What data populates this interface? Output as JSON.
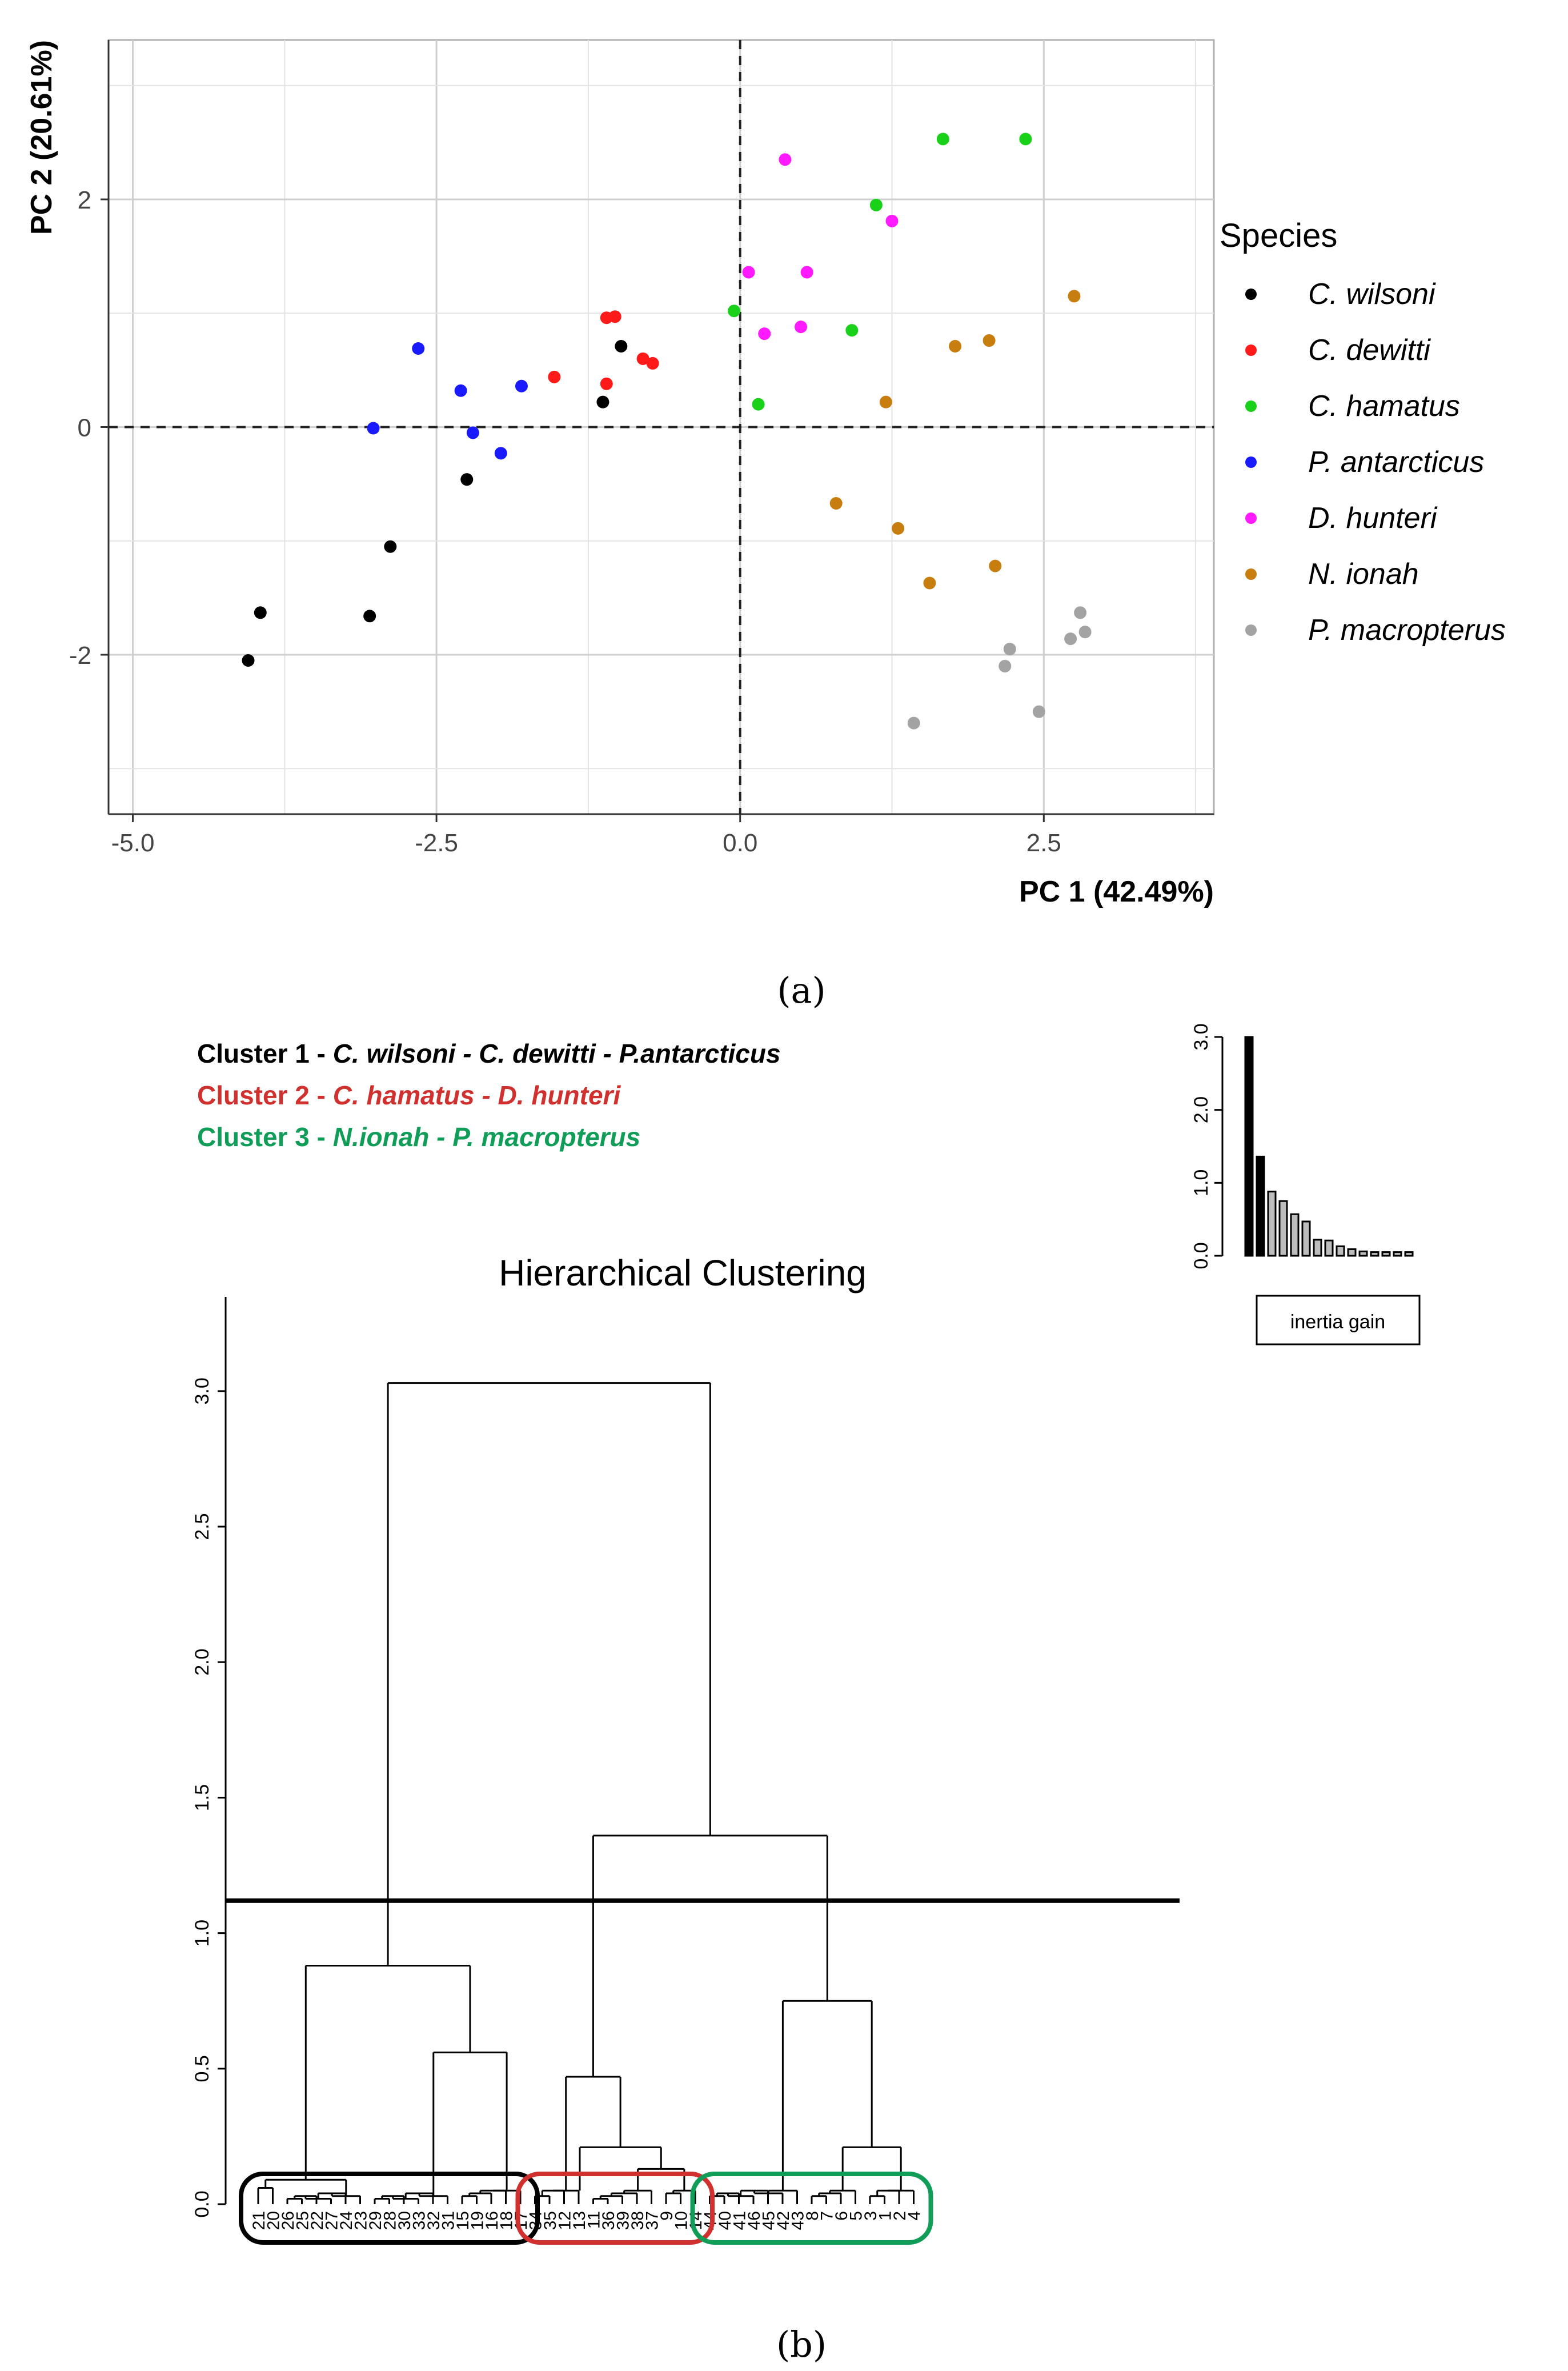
{
  "panel_a_label": "(a)",
  "panel_b_label": "(b)",
  "cluster_legend": [
    {
      "prefix": "Cluster 1 - ",
      "species": "C. wilsoni - C. dewitti - P.antarcticus",
      "color": "#000000"
    },
    {
      "prefix": "Cluster 2 - ",
      "species": "C. hamatus - D. hunteri",
      "color": "#d0302e"
    },
    {
      "prefix": "Cluster 3 - ",
      "species": "N.ionah - P. macropterus",
      "color": "#0f9d58"
    }
  ],
  "chart_data": [
    {
      "type": "scatter",
      "xlabel": "PC 1 (42.49%)",
      "ylabel": "PC 2 (20.61%)",
      "xlim": [
        -5.2,
        3.9
      ],
      "ylim": [
        -3.4,
        3.4
      ],
      "xticks": [
        -5.0,
        -2.5,
        0.0,
        2.5
      ],
      "xtick_labels": [
        "-5.0",
        "-2.5",
        "0.0",
        "2.5"
      ],
      "yticks": [
        -2,
        0,
        2
      ],
      "ytick_labels": [
        "-2",
        "0",
        "2"
      ],
      "reference_lines": {
        "x": 0,
        "y": 0
      },
      "legend_title": "Species",
      "series": [
        {
          "name": "C. wilsoni",
          "color": "#000000",
          "points": [
            [
              -4.05,
              -2.05
            ],
            [
              -3.95,
              -1.63
            ],
            [
              -3.05,
              -1.66
            ],
            [
              -2.88,
              -1.05
            ],
            [
              -2.25,
              -0.46
            ],
            [
              -1.13,
              0.22
            ],
            [
              -0.98,
              0.71
            ]
          ]
        },
        {
          "name": "C. dewitti",
          "color": "#ff1a1a",
          "points": [
            [
              -1.53,
              0.44
            ],
            [
              -1.1,
              0.38
            ],
            [
              -1.1,
              0.96
            ],
            [
              -1.03,
              0.97
            ],
            [
              -0.8,
              0.6
            ],
            [
              -0.72,
              0.56
            ]
          ]
        },
        {
          "name": "C. hamatus",
          "color": "#1ad11a",
          "points": [
            [
              -0.05,
              1.02
            ],
            [
              0.15,
              0.2
            ],
            [
              0.92,
              0.85
            ],
            [
              1.12,
              1.95
            ],
            [
              1.67,
              2.53
            ],
            [
              2.35,
              2.53
            ]
          ]
        },
        {
          "name": "P. antarcticus",
          "color": "#1a1aff",
          "points": [
            [
              -3.02,
              -0.01
            ],
            [
              -2.65,
              0.69
            ],
            [
              -2.3,
              0.32
            ],
            [
              -2.2,
              -0.05
            ],
            [
              -1.8,
              0.36
            ],
            [
              -1.97,
              -0.23
            ]
          ]
        },
        {
          "name": "D. hunteri",
          "color": "#ff1aff",
          "points": [
            [
              0.07,
              1.36
            ],
            [
              0.2,
              0.82
            ],
            [
              0.37,
              2.35
            ],
            [
              0.5,
              0.88
            ],
            [
              0.55,
              1.36
            ],
            [
              1.25,
              1.81
            ]
          ]
        },
        {
          "name": "N. ionah",
          "color": "#c77e0e",
          "points": [
            [
              0.79,
              -0.67
            ],
            [
              1.2,
              0.22
            ],
            [
              1.3,
              -0.89
            ],
            [
              1.56,
              -1.37
            ],
            [
              1.77,
              0.71
            ],
            [
              2.05,
              0.76
            ],
            [
              2.1,
              -1.22
            ],
            [
              2.75,
              1.15
            ]
          ]
        },
        {
          "name": "P. macropterus",
          "color": "#a3a3a3",
          "points": [
            [
              1.43,
              -2.6
            ],
            [
              2.18,
              -2.1
            ],
            [
              2.22,
              -1.95
            ],
            [
              2.46,
              -2.5
            ],
            [
              2.72,
              -1.86
            ],
            [
              2.8,
              -1.63
            ],
            [
              2.84,
              -1.8
            ]
          ]
        }
      ]
    },
    {
      "type": "dendrogram",
      "title": "Hierarchical Clustering",
      "ylim": [
        0,
        3.2
      ],
      "yticks": [
        "0.0",
        "0.5",
        "1.0",
        "1.5",
        "2.0",
        "2.5",
        "3.0"
      ],
      "cut_height": 1.12,
      "leaf_labels": [
        "21",
        "20",
        "26",
        "25",
        "22",
        "27",
        "24",
        "23",
        "29",
        "28",
        "30",
        "33",
        "32",
        "31",
        "15",
        "19",
        "16",
        "18",
        "17",
        "34",
        "35",
        "12",
        "13",
        "11",
        "36",
        "39",
        "38",
        "37",
        "9",
        "10",
        "14",
        "44",
        "40",
        "41",
        "46",
        "45",
        "42",
        "43",
        "8",
        "7",
        "6",
        "5",
        "3",
        "1",
        "2",
        "4"
      ],
      "root_height": 3.03,
      "cluster_heights": {
        "cluster_1": 0.88,
        "cluster_2": 0.47,
        "cluster_3": 0.75,
        "cluster_2_3": 1.36
      },
      "cluster_colors": [
        "#000000",
        "#d0302e",
        "#0f9d58"
      ]
    },
    {
      "type": "bar",
      "title": "inertia gain",
      "ylim": [
        0,
        3.0
      ],
      "yticks": [
        "0.0",
        "1.0",
        "2.0",
        "3.0"
      ],
      "values": [
        3.03,
        1.36,
        0.88,
        0.75,
        0.57,
        0.47,
        0.22,
        0.21,
        0.13,
        0.09,
        0.06,
        0.05,
        0.05,
        0.05,
        0.05
      ],
      "highlighted_count": 2
    }
  ]
}
